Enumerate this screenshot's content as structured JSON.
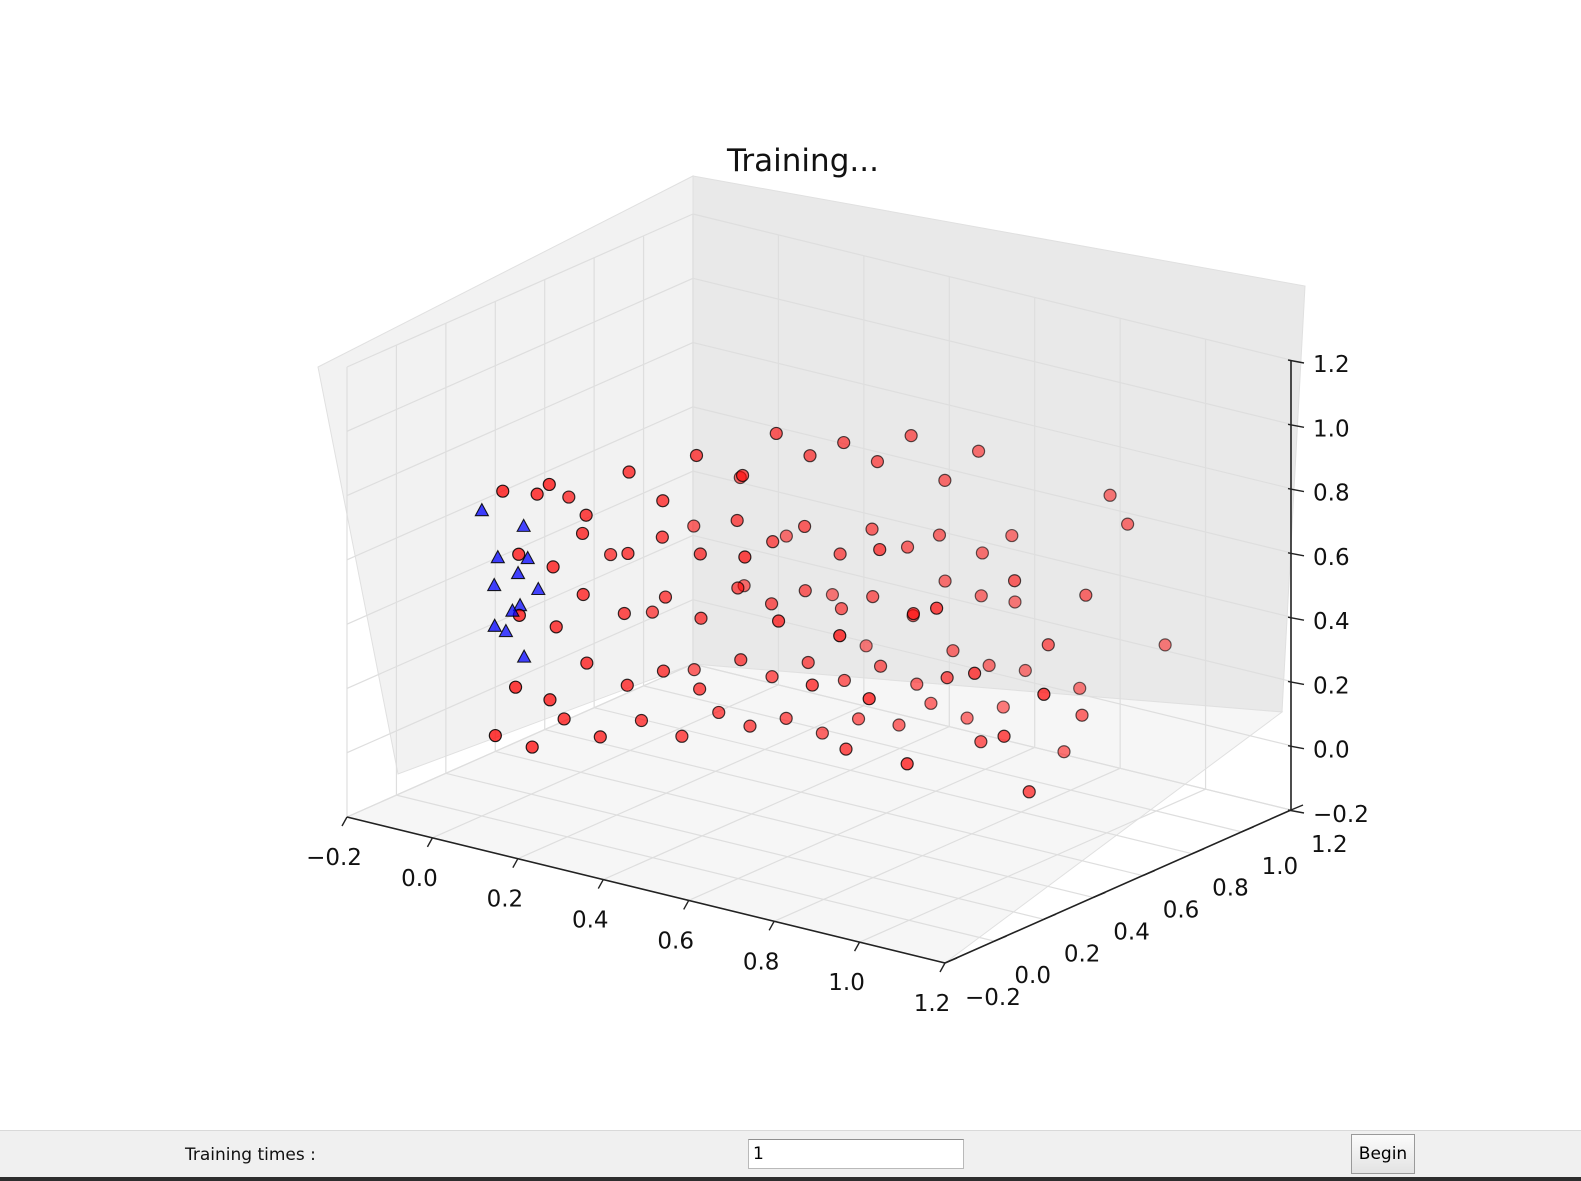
{
  "controls": {
    "training_times_label": "Training times :",
    "training_times_value": "1",
    "begin_label": "Begin"
  },
  "chart_data": {
    "type": "scatter3d",
    "title": "Training...",
    "xlabel": "",
    "ylabel": "",
    "zlabel": "",
    "xlim": [
      -0.2,
      1.2
    ],
    "ylim": [
      -0.2,
      1.2
    ],
    "zlim": [
      -0.2,
      1.2
    ],
    "xticks": [
      "−0.2",
      "0.0",
      "0.2",
      "0.4",
      "0.6",
      "0.8",
      "1.0",
      "1.2"
    ],
    "yticks": [
      "−0.2",
      "0.0",
      "0.2",
      "0.4",
      "0.6",
      "0.8",
      "1.0",
      "1.2"
    ],
    "zticks": [
      "−0.2",
      "0.0",
      "0.2",
      "0.4",
      "0.6",
      "0.8",
      "1.0",
      "1.2"
    ],
    "grid": true,
    "series": [
      {
        "marker": "circle",
        "color": "#ff0000",
        "points": [
          [
            0.02,
            0.05,
            0.8
          ],
          [
            0.06,
            0.12,
            0.78
          ],
          [
            0.1,
            0.1,
            0.83
          ],
          [
            0.14,
            0.18,
            0.72
          ],
          [
            0.2,
            0.25,
            0.85
          ],
          [
            0.25,
            0.3,
            0.76
          ],
          [
            0.3,
            0.35,
            0.9
          ],
          [
            0.35,
            0.45,
            0.82
          ],
          [
            0.4,
            0.5,
            0.95
          ],
          [
            0.45,
            0.55,
            0.88
          ],
          [
            0.5,
            0.6,
            0.92
          ],
          [
            0.55,
            0.65,
            0.86
          ],
          [
            0.6,
            0.7,
            0.94
          ],
          [
            0.65,
            0.75,
            0.8
          ],
          [
            0.7,
            0.8,
            0.89
          ],
          [
            0.04,
            0.08,
            0.6
          ],
          [
            0.08,
            0.15,
            0.55
          ],
          [
            0.12,
            0.2,
            0.65
          ],
          [
            0.18,
            0.28,
            0.58
          ],
          [
            0.22,
            0.35,
            0.62
          ],
          [
            0.28,
            0.4,
            0.57
          ],
          [
            0.32,
            0.48,
            0.66
          ],
          [
            0.38,
            0.52,
            0.6
          ],
          [
            0.42,
            0.58,
            0.64
          ],
          [
            0.48,
            0.62,
            0.56
          ],
          [
            0.52,
            0.68,
            0.63
          ],
          [
            0.58,
            0.72,
            0.58
          ],
          [
            0.62,
            0.78,
            0.61
          ],
          [
            0.68,
            0.85,
            0.55
          ],
          [
            0.72,
            0.9,
            0.6
          ],
          [
            0.03,
            0.1,
            0.4
          ],
          [
            0.07,
            0.18,
            0.35
          ],
          [
            0.11,
            0.22,
            0.45
          ],
          [
            0.16,
            0.3,
            0.38
          ],
          [
            0.21,
            0.38,
            0.42
          ],
          [
            0.27,
            0.42,
            0.36
          ],
          [
            0.31,
            0.5,
            0.44
          ],
          [
            0.36,
            0.55,
            0.39
          ],
          [
            0.41,
            0.6,
            0.43
          ],
          [
            0.46,
            0.66,
            0.37
          ],
          [
            0.51,
            0.7,
            0.41
          ],
          [
            0.57,
            0.76,
            0.35
          ],
          [
            0.61,
            0.82,
            0.45
          ],
          [
            0.66,
            0.88,
            0.4
          ],
          [
            0.71,
            0.93,
            0.38
          ],
          [
            0.05,
            0.05,
            0.2
          ],
          [
            0.09,
            0.12,
            0.15
          ],
          [
            0.13,
            0.2,
            0.25
          ],
          [
            0.19,
            0.26,
            0.18
          ],
          [
            0.24,
            0.32,
            0.22
          ],
          [
            0.29,
            0.38,
            0.16
          ],
          [
            0.34,
            0.46,
            0.24
          ],
          [
            0.39,
            0.5,
            0.19
          ],
          [
            0.44,
            0.56,
            0.23
          ],
          [
            0.49,
            0.62,
            0.17
          ],
          [
            0.54,
            0.68,
            0.21
          ],
          [
            0.59,
            0.74,
            0.15
          ],
          [
            0.64,
            0.8,
            0.25
          ],
          [
            0.69,
            0.86,
            0.2
          ],
          [
            0.74,
            0.92,
            0.18
          ],
          [
            0.02,
            0.02,
            0.05
          ],
          [
            0.06,
            0.1,
            0.0
          ],
          [
            0.1,
            0.16,
            0.08
          ],
          [
            0.15,
            0.22,
            0.02
          ],
          [
            0.2,
            0.3,
            0.06
          ],
          [
            0.26,
            0.36,
            0.01
          ],
          [
            0.3,
            0.44,
            0.07
          ],
          [
            0.35,
            0.48,
            0.03
          ],
          [
            0.4,
            0.54,
            0.05
          ],
          [
            0.45,
            0.6,
            0.0
          ],
          [
            0.5,
            0.66,
            0.04
          ],
          [
            0.56,
            0.72,
            0.02
          ],
          [
            0.6,
            0.78,
            0.08
          ],
          [
            0.65,
            0.84,
            0.03
          ],
          [
            0.7,
            0.9,
            0.06
          ],
          [
            0.03,
            0.3,
            0.7
          ],
          [
            0.07,
            0.4,
            0.5
          ],
          [
            0.11,
            0.5,
            0.3
          ],
          [
            0.15,
            0.6,
            0.1
          ],
          [
            0.2,
            0.7,
            0.68
          ],
          [
            0.25,
            0.8,
            0.48
          ],
          [
            0.3,
            0.9,
            0.28
          ],
          [
            0.35,
            0.95,
            0.12
          ],
          [
            0.12,
            0.65,
            0.52
          ],
          [
            0.18,
            0.75,
            0.32
          ],
          [
            0.5,
            0.2,
            0.7
          ],
          [
            0.55,
            0.25,
            0.5
          ],
          [
            0.6,
            0.3,
            0.3
          ],
          [
            0.65,
            0.35,
            0.1
          ],
          [
            0.7,
            0.4,
            0.72
          ],
          [
            0.75,
            0.45,
            0.52
          ],
          [
            0.8,
            0.5,
            0.32
          ],
          [
            0.85,
            0.55,
            0.12
          ],
          [
            0.9,
            0.6,
            0.62
          ],
          [
            0.95,
            0.65,
            0.42
          ],
          [
            0.78,
            0.1,
            0.58
          ],
          [
            0.82,
            0.15,
            0.38
          ],
          [
            0.88,
            0.2,
            0.18
          ],
          [
            0.92,
            0.25,
            0.66
          ],
          [
            0.98,
            0.3,
            0.46
          ],
          [
            1.02,
            0.35,
            0.26
          ],
          [
            1.05,
            0.4,
            0.08
          ],
          [
            0.98,
            0.75,
            0.55
          ],
          [
            1.02,
            0.85,
            0.75
          ],
          [
            1.05,
            0.95,
            0.35
          ],
          [
            1.2,
            0.2,
            0.5
          ],
          [
            0.95,
            0.9,
            0.8
          ],
          [
            0.85,
            0.95,
            0.15
          ],
          [
            0.9,
            0.8,
            0.02
          ],
          [
            1.0,
            0.7,
            0.2
          ]
        ]
      },
      {
        "marker": "triangle",
        "color": "#0000ff",
        "points": [
          [
            0.0,
            0.0,
            0.75
          ],
          [
            0.02,
            0.03,
            0.6
          ],
          [
            0.0,
            0.05,
            0.5
          ],
          [
            0.03,
            0.0,
            0.4
          ],
          [
            0.05,
            0.06,
            0.55
          ],
          [
            0.06,
            0.02,
            0.45
          ],
          [
            0.01,
            0.08,
            0.35
          ],
          [
            0.04,
            0.1,
            0.68
          ],
          [
            0.07,
            0.05,
            0.3
          ],
          [
            0.08,
            0.09,
            0.5
          ],
          [
            0.02,
            0.12,
            0.42
          ],
          [
            0.09,
            0.03,
            0.62
          ]
        ]
      }
    ]
  }
}
